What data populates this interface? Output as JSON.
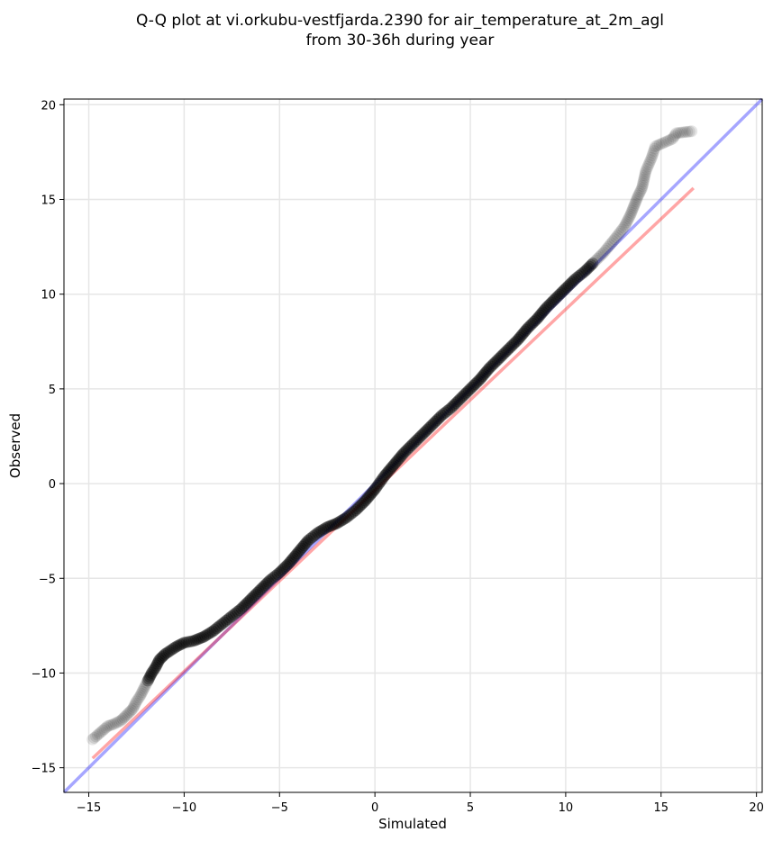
{
  "chart_data": {
    "type": "scatter",
    "title_lines": [
      "Q-Q plot at vi.orkubu-vestfjarda.2390 for air_temperature_at_2m_agl",
      "from 30-36h during year"
    ],
    "xlabel": "Simulated",
    "ylabel": "Observed",
    "xlim": [
      -16.3,
      20.3
    ],
    "ylim": [
      -16.3,
      20.3
    ],
    "xticks": [
      -15,
      -10,
      -5,
      0,
      5,
      10,
      15,
      20
    ],
    "yticks": [
      -15,
      -10,
      -5,
      0,
      5,
      10,
      15,
      20
    ],
    "xtick_labels": [
      "−15",
      "−10",
      "−5",
      "0",
      "5",
      "10",
      "15",
      "20"
    ],
    "ytick_labels": [
      "−15",
      "−10",
      "−5",
      "0",
      "5",
      "10",
      "15",
      "20"
    ],
    "grid": true,
    "identity_line": {
      "from": [
        -16.3,
        -16.3
      ],
      "to": [
        20.3,
        20.3
      ],
      "color": "#0000ff"
    },
    "fit_line": {
      "from": [
        -14.8,
        -14.5
      ],
      "to": [
        16.7,
        15.6
      ],
      "color": "#ff0000"
    },
    "marker_color": "#000000",
    "quantile_points": {
      "x": [
        -14.8,
        -14.0,
        -13.7,
        -13.3,
        -13.0,
        -12.7,
        -12.5,
        -12.3,
        -12.1,
        -11.9,
        -11.7,
        -11.5,
        -11.3,
        -11.0,
        -10.7,
        -10.4,
        -10.0,
        -9.5,
        -9.0,
        -8.5,
        -8.0,
        -7.5,
        -7.0,
        -6.5,
        -6.0,
        -5.5,
        -5.0,
        -4.5,
        -4.0,
        -3.5,
        -3.0,
        -2.5,
        -2.0,
        -1.5,
        -1.0,
        -0.5,
        0.0,
        0.5,
        1.0,
        1.5,
        2.0,
        2.5,
        3.0,
        3.5,
        4.0,
        4.5,
        5.0,
        5.5,
        6.0,
        6.5,
        7.0,
        7.5,
        8.0,
        8.5,
        9.0,
        9.5,
        10.0,
        10.5,
        11.0,
        11.5,
        12.0,
        12.4,
        12.8,
        13.1,
        13.4,
        13.6,
        13.8,
        14.0,
        14.2,
        14.5,
        14.7,
        15.6,
        15.8,
        16.6
      ],
      "y": [
        -13.5,
        -12.8,
        -12.7,
        -12.5,
        -12.2,
        -11.9,
        -11.5,
        -11.2,
        -10.8,
        -10.4,
        -10.0,
        -9.7,
        -9.3,
        -9.0,
        -8.8,
        -8.6,
        -8.4,
        -8.3,
        -8.1,
        -7.8,
        -7.4,
        -7.0,
        -6.6,
        -6.1,
        -5.6,
        -5.1,
        -4.7,
        -4.2,
        -3.6,
        -3.0,
        -2.6,
        -2.3,
        -2.1,
        -1.8,
        -1.4,
        -0.9,
        -0.3,
        0.4,
        1.0,
        1.6,
        2.1,
        2.6,
        3.1,
        3.6,
        4.0,
        4.5,
        5.0,
        5.5,
        6.1,
        6.6,
        7.1,
        7.6,
        8.2,
        8.7,
        9.3,
        9.8,
        10.3,
        10.8,
        11.2,
        11.7,
        12.2,
        12.7,
        13.2,
        13.6,
        14.2,
        14.7,
        15.2,
        15.6,
        16.5,
        17.2,
        17.8,
        18.2,
        18.5,
        18.6
      ]
    }
  }
}
